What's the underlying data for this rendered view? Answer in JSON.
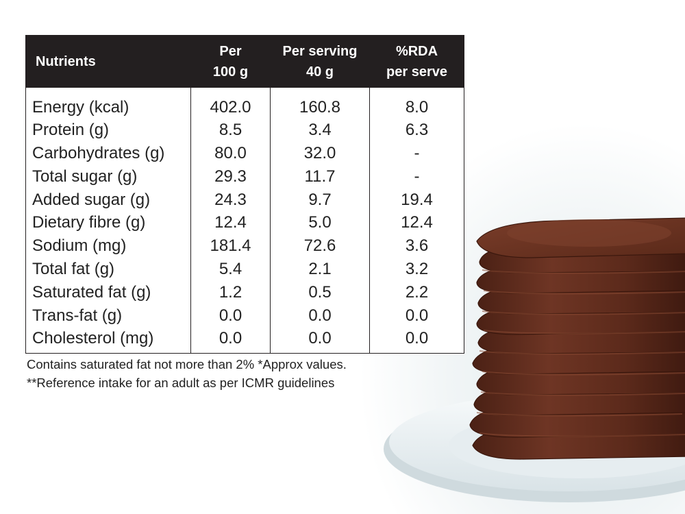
{
  "table": {
    "headers": {
      "nutrients": "Nutrients",
      "per_100g": [
        "Per",
        "100 g"
      ],
      "per_serving": [
        "Per serving",
        "40 g"
      ],
      "rda": [
        "%RDA",
        "per serve"
      ]
    },
    "rows": [
      {
        "name": "Energy (kcal)",
        "per_100g": "402.0",
        "per_serving": "160.8",
        "rda": "8.0"
      },
      {
        "name": "Protein (g)",
        "per_100g": "8.5",
        "per_serving": "3.4",
        "rda": "6.3"
      },
      {
        "name": "Carbohydrates (g)",
        "per_100g": "80.0",
        "per_serving": "32.0",
        "rda": "-"
      },
      {
        "name": "Total sugar (g)",
        "per_100g": "29.3",
        "per_serving": "11.7",
        "rda": "-"
      },
      {
        "name": "Added sugar (g)",
        "per_100g": "24.3",
        "per_serving": "9.7",
        "rda": "19.4"
      },
      {
        "name": "Dietary fibre (g)",
        "per_100g": "12.4",
        "per_serving": "5.0",
        "rda": "12.4"
      },
      {
        "name": "Sodium (mg)",
        "per_100g": "181.4",
        "per_serving": "72.6",
        "rda": "3.6"
      },
      {
        "name": "Total fat (g)",
        "per_100g": "5.4",
        "per_serving": "2.1",
        "rda": "3.2"
      },
      {
        "name": "Saturated fat (g)",
        "per_100g": "1.2",
        "per_serving": "0.5",
        "rda": "2.2"
      },
      {
        "name": "Trans-fat (g)",
        "per_100g": "0.0",
        "per_serving": "0.0",
        "rda": "0.0"
      },
      {
        "name": "Cholesterol (mg)",
        "per_100g": "0.0",
        "per_serving": "0.0",
        "rda": "0.0"
      }
    ]
  },
  "footnotes": {
    "line1": "Contains saturated fat not more than 2% *Approx values.",
    "line2": "**Reference intake for an adult as per ICMR guidelines"
  },
  "colors": {
    "header_bg": "#231f20",
    "header_text": "#ffffff",
    "border": "#231f20",
    "pancake": "#5a2a1c",
    "plate": "#e9eff2"
  },
  "image": {
    "subject": "stack-of-chocolate-pancakes-on-plate"
  }
}
